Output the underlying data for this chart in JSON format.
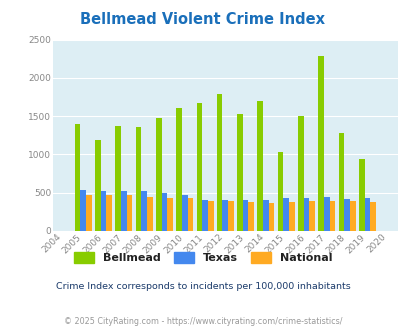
{
  "title": "Bellmead Violent Crime Index",
  "years": [
    2004,
    2005,
    2006,
    2007,
    2008,
    2009,
    2010,
    2011,
    2012,
    2013,
    2014,
    2015,
    2016,
    2017,
    2018,
    2019,
    2020
  ],
  "bellmead": [
    null,
    1400,
    1195,
    1365,
    1355,
    1470,
    1610,
    1670,
    1790,
    1530,
    1700,
    1035,
    1500,
    2290,
    1280,
    935,
    null
  ],
  "texas": [
    null,
    530,
    520,
    525,
    525,
    490,
    465,
    400,
    400,
    405,
    410,
    430,
    435,
    440,
    415,
    430,
    null
  ],
  "national": [
    null,
    470,
    465,
    465,
    450,
    430,
    430,
    395,
    390,
    375,
    370,
    375,
    390,
    395,
    390,
    375,
    null
  ],
  "bar_width": 0.28,
  "color_bellmead": "#88cc00",
  "color_texas": "#4488ee",
  "color_national": "#ffaa22",
  "bg_color": "#ddeef4",
  "ylim": [
    0,
    2500
  ],
  "yticks": [
    0,
    500,
    1000,
    1500,
    2000,
    2500
  ],
  "subtitle": "Crime Index corresponds to incidents per 100,000 inhabitants",
  "footer": "© 2025 CityRating.com - https://www.cityrating.com/crime-statistics/",
  "title_color": "#1a6fba",
  "subtitle_color": "#1a3a6a",
  "footer_color": "#999999",
  "tick_color": "#888888"
}
